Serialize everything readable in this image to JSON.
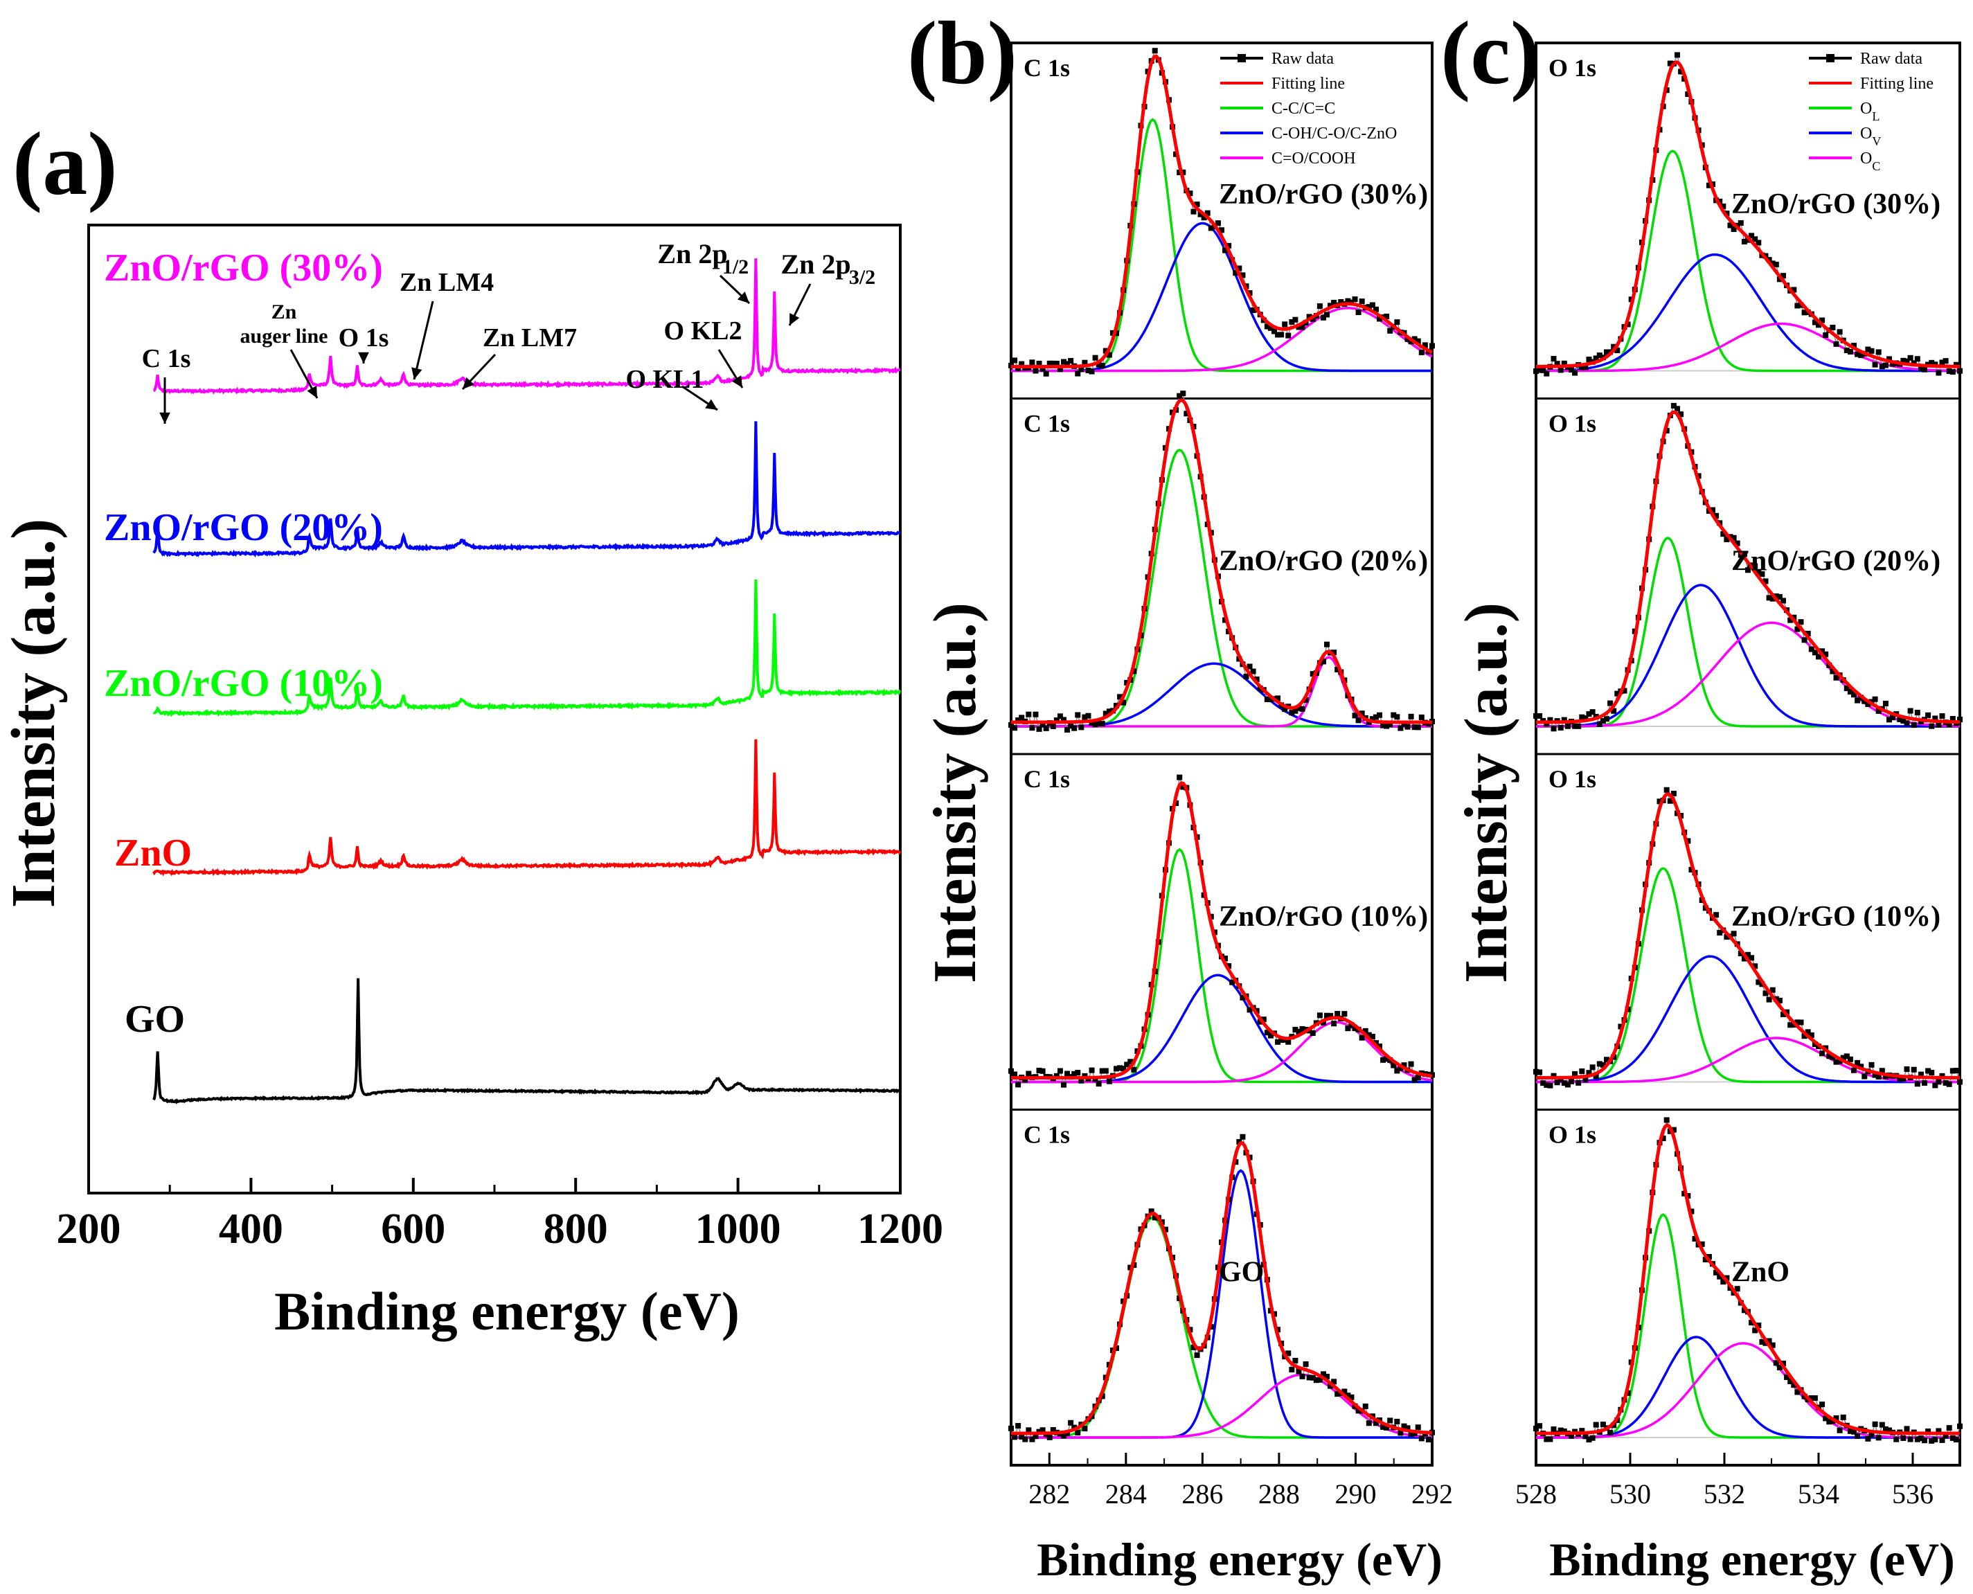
{
  "panel_labels": {
    "a": "(a)",
    "b": "(b)",
    "c": "(c)"
  },
  "panel_a": {
    "ylabel": "Intensity (a.u.)",
    "xlabel": "Binding energy (eV)"
  },
  "panel_b": {
    "ylabel": "Intensity (a.u.)",
    "xlabel": "Binding energy (eV)",
    "core_label": "C 1s",
    "legend": [
      "Raw data",
      "Fitting line",
      "C-C/C=C",
      "C-OH/C-O/C-ZnO",
      "C=O/COOH"
    ]
  },
  "panel_c": {
    "ylabel": "Intensity (a.u.)",
    "xlabel": "Binding energy (eV)",
    "core_label": "O 1s",
    "legend": [
      "Raw data",
      "Fitting line",
      "O",
      "O",
      "O"
    ],
    "legend_subscripts": [
      "L",
      "V",
      "C"
    ]
  },
  "chart_data": [
    {
      "type": "line",
      "id": "survey",
      "title": "",
      "xlabel": "Binding energy (eV)",
      "ylabel": "Intensity (a.u.)",
      "xlim": [
        200,
        1200
      ],
      "xticks": [
        200,
        400,
        600,
        800,
        1000,
        1200
      ],
      "series": [
        {
          "name": "ZnO/rGO (30%)",
          "color": "#ff00ff",
          "offset": 4,
          "c1s": 0.35
        },
        {
          "name": "ZnO/rGO (20%)",
          "color": "#0000ff",
          "offset": 3,
          "c1s": 0.55
        },
        {
          "name": "ZnO/rGO (10%)",
          "color": "#00ff00",
          "offset": 2,
          "c1s": 0.1
        },
        {
          "name": "ZnO",
          "color": "#ff0000",
          "offset": 1,
          "c1s": 0.05
        },
        {
          "name": "GO",
          "color": "#000000",
          "offset": 0,
          "c1s": 1.0
        }
      ],
      "annotations": [
        {
          "text": "C 1s",
          "x": 285
        },
        {
          "text": "Zn auger line",
          "x": 478
        },
        {
          "text": "O 1s",
          "x": 531
        },
        {
          "text": "Zn LM4",
          "x": 588
        },
        {
          "text": "Zn LM7",
          "x": 660
        },
        {
          "text": "O KL1",
          "x": 978
        },
        {
          "text": "O KL2",
          "x": 1010
        },
        {
          "text": "Zn 2p 1/2",
          "x": 1022
        },
        {
          "text": "Zn 2p 3/2",
          "x": 1045
        }
      ]
    },
    {
      "type": "line",
      "id": "c1s",
      "xlabel": "Binding energy (eV)",
      "ylabel": "Intensity (a.u.)",
      "xlim": [
        281,
        292
      ],
      "xticks": [
        282,
        284,
        286,
        288,
        290,
        292
      ],
      "legend": [
        "Raw data",
        "Fitting line",
        "C-C/C=C",
        "C-OH/C-O/C-ZnO",
        "C=O/COOH"
      ],
      "subplots": [
        {
          "name": "ZnO/rGO (30%)",
          "components": [
            {
              "label": "C-C/C=C",
              "center": 284.7,
              "fwhm": 1.1,
              "height": 0.8
            },
            {
              "label": "C-OH/C-O/C-ZnO",
              "center": 286.0,
              "fwhm": 2.2,
              "height": 0.47
            },
            {
              "label": "C=O/COOH",
              "center": 289.8,
              "fwhm": 3.0,
              "height": 0.2
            }
          ]
        },
        {
          "name": "ZnO/rGO (20%)",
          "components": [
            {
              "label": "C-C/C=C",
              "center": 285.4,
              "fwhm": 1.5,
              "height": 0.88
            },
            {
              "label": "C-OH/C-O/C-ZnO",
              "center": 286.3,
              "fwhm": 2.6,
              "height": 0.2
            },
            {
              "label": "C=O/COOH",
              "center": 289.3,
              "fwhm": 0.9,
              "height": 0.22
            }
          ]
        },
        {
          "name": "ZnO/rGO (10%)",
          "components": [
            {
              "label": "C-C/C=C",
              "center": 285.4,
              "fwhm": 1.1,
              "height": 0.74
            },
            {
              "label": "C-OH/C-O/C-ZnO",
              "center": 286.4,
              "fwhm": 2.2,
              "height": 0.34
            },
            {
              "label": "C=O/COOH",
              "center": 289.5,
              "fwhm": 2.2,
              "height": 0.19
            }
          ]
        },
        {
          "name": "GO",
          "components": [
            {
              "label": "C-C/C=C",
              "center": 284.7,
              "fwhm": 1.7,
              "height": 0.7
            },
            {
              "label": "C-OH/C-O/C-ZnO",
              "center": 287.0,
              "fwhm": 1.2,
              "height": 0.85
            },
            {
              "label": "C=O/COOH",
              "center": 288.6,
              "fwhm": 2.6,
              "height": 0.2
            }
          ]
        }
      ]
    },
    {
      "type": "line",
      "id": "o1s",
      "xlabel": "Binding energy (eV)",
      "ylabel": "Intensity (a.u.)",
      "xlim": [
        528,
        537
      ],
      "xticks": [
        528,
        530,
        532,
        534,
        536
      ],
      "legend": [
        "Raw data",
        "Fitting line",
        "OL",
        "OV",
        "OC"
      ],
      "subplots": [
        {
          "name": "ZnO/rGO (30%)",
          "components": [
            {
              "label": "OL",
              "center": 530.9,
              "fwhm": 1.1,
              "height": 0.7
            },
            {
              "label": "OV",
              "center": 531.8,
              "fwhm": 2.3,
              "height": 0.37
            },
            {
              "label": "OC",
              "center": 533.2,
              "fwhm": 2.6,
              "height": 0.15
            }
          ]
        },
        {
          "name": "ZnO/rGO (20%)",
          "components": [
            {
              "label": "OL",
              "center": 530.8,
              "fwhm": 1.0,
              "height": 0.6
            },
            {
              "label": "OV",
              "center": 531.5,
              "fwhm": 1.9,
              "height": 0.45
            },
            {
              "label": "OC",
              "center": 533.0,
              "fwhm": 2.7,
              "height": 0.33
            }
          ]
        },
        {
          "name": "ZnO/rGO (10%)",
          "components": [
            {
              "label": "OL",
              "center": 530.7,
              "fwhm": 1.1,
              "height": 0.68
            },
            {
              "label": "OV",
              "center": 531.7,
              "fwhm": 2.0,
              "height": 0.4
            },
            {
              "label": "OC",
              "center": 533.1,
              "fwhm": 2.4,
              "height": 0.14
            }
          ]
        },
        {
          "name": "ZnO",
          "components": [
            {
              "label": "OL",
              "center": 530.7,
              "fwhm": 0.9,
              "height": 0.71
            },
            {
              "label": "OV",
              "center": 531.4,
              "fwhm": 1.6,
              "height": 0.32
            },
            {
              "label": "OC",
              "center": 532.4,
              "fwhm": 2.3,
              "height": 0.3
            }
          ]
        }
      ]
    }
  ]
}
